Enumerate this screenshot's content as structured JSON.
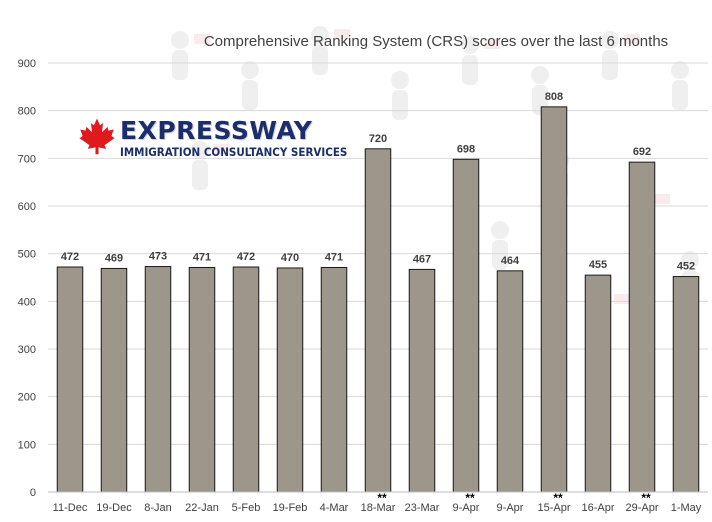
{
  "chart_data": {
    "type": "bar",
    "title": "Comprehensive Ranking System (CRS) scores over the last 6 months",
    "xlabel": "",
    "ylabel": "",
    "ylim": [
      0,
      900
    ],
    "yticks": [
      0,
      100,
      200,
      300,
      400,
      500,
      600,
      700,
      800,
      900
    ],
    "categories": [
      "11-Dec",
      "19-Dec",
      "8-Jan",
      "22-Jan",
      "5-Feb",
      "19-Feb",
      "4-Mar",
      "18-Mar",
      "23-Mar",
      "9-Apr",
      "9-Apr",
      "15-Apr",
      "16-Apr",
      "29-Apr",
      "1-May"
    ],
    "values": [
      472,
      469,
      473,
      471,
      472,
      470,
      471,
      720,
      467,
      698,
      464,
      808,
      455,
      692,
      452
    ],
    "markers": [
      "",
      "",
      "",
      "",
      "",
      "",
      "",
      "**",
      "",
      "**",
      "",
      "**",
      "",
      "**",
      ""
    ],
    "grid": true,
    "legend": "none",
    "bar_color": "#9d968a",
    "bar_edge": "#1a1a1a",
    "grid_color": "#d9d9d9"
  },
  "logo": {
    "word": "EXPRESSWAY",
    "subtitle": "IMMIGRATION CONSULTANCY SERVICES",
    "icon": "maple-leaf-icon",
    "leaf_color": "#e0191f",
    "text_color": "#1b2d6b"
  }
}
